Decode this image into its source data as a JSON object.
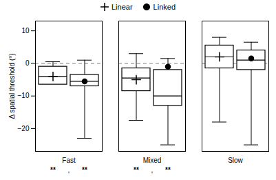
{
  "chart_data": {
    "type": "box",
    "ylabel": "Δ spatial threshold (°)",
    "categories": [
      "Fast",
      "Mixed",
      "Slow"
    ],
    "series": [
      {
        "name": "Linear",
        "color": "#000000",
        "marker": "plus",
        "values": [
          {
            "whisker_low": -1.5,
            "q1": -6.5,
            "median": -4.0,
            "q3": -1.0,
            "whisker_high": 0.5,
            "mean": -4.0
          },
          {
            "whisker_low": -17.5,
            "q1": -8.5,
            "median": -4.5,
            "q3": -1.5,
            "whisker_high": 3.0,
            "mean": -5.0
          },
          {
            "whisker_low": -18.0,
            "q1": -1.5,
            "median": 2.0,
            "q3": 5.5,
            "whisker_high": 8.0,
            "mean": 2.0
          }
        ]
      },
      {
        "name": "Linked",
        "color": "#000000",
        "marker": "circle",
        "values": [
          {
            "whisker_low": -23.0,
            "q1": -7.0,
            "median": -5.5,
            "q3": -3.5,
            "whisker_high": 1.0,
            "mean": -5.5
          },
          {
            "whisker_low": -25.0,
            "q1": -13.0,
            "median": -10.0,
            "q3": -2.0,
            "whisker_high": 1.5,
            "mean": -1.0
          },
          {
            "whisker_low": -25.0,
            "q1": -2.0,
            "median": 1.0,
            "q3": 4.0,
            "whisker_high": 6.5,
            "mean": 1.5
          }
        ]
      }
    ],
    "ylim": [
      -27,
      13
    ],
    "yticks": [
      10,
      0,
      -10,
      -20
    ],
    "hline": 0,
    "grid": false,
    "legend": "top",
    "annotations": [
      {
        "category": "Fast",
        "labels": [
          "**",
          "**"
        ],
        "separator": ","
      },
      {
        "category": "Mixed",
        "labels": [
          "**",
          "**"
        ],
        "separator": ","
      }
    ]
  }
}
